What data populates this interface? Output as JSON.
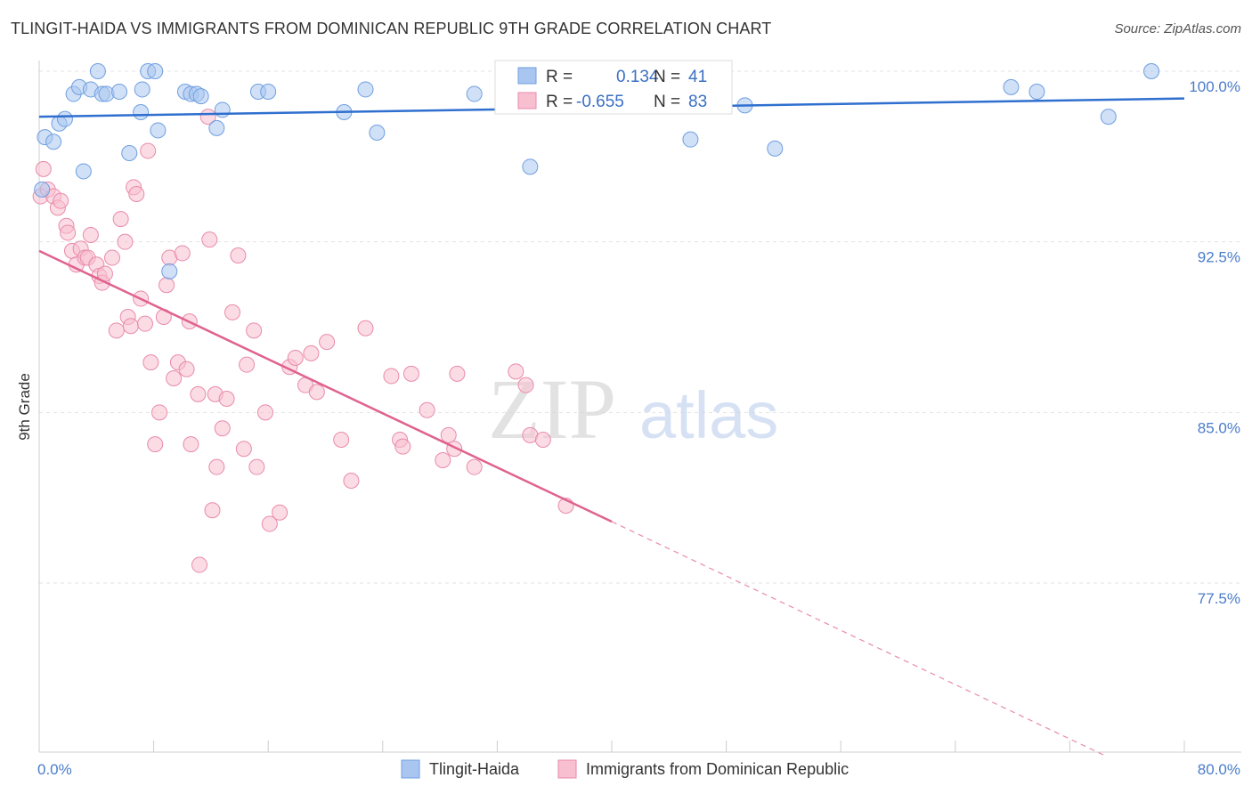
{
  "title": "TLINGIT-HAIDA VS IMMIGRANTS FROM DOMINICAN REPUBLIC 9TH GRADE CORRELATION CHART",
  "source": "Source: ZipAtlas.com",
  "watermark": {
    "zip": "ZIP",
    "atlas": "atlas"
  },
  "legend": {
    "rows": [
      {
        "r_label": "R =",
        "r_value": "0.134",
        "n_label": "N =",
        "n_value": "41",
        "color": "#a9c6f0",
        "stroke": "#6f9fe0"
      },
      {
        "r_label": "R =",
        "r_value": "-0.655",
        "n_label": "N =",
        "n_value": "83",
        "color": "#f7bfd0",
        "stroke": "#e98aab"
      }
    ]
  },
  "bottom_legend": [
    {
      "label": "Tlingit-Haida",
      "color": "#a9c6f0",
      "stroke": "#6f9fe0"
    },
    {
      "label": "Immigrants from Dominican Republic",
      "color": "#f7bfd0",
      "stroke": "#e98aab"
    }
  ],
  "chart_data": {
    "type": "scatter",
    "title": "TLINGIT-HAIDA VS IMMIGRANTS FROM DOMINICAN REPUBLIC 9TH GRADE CORRELATION CHART",
    "xlabel": "",
    "ylabel": "9th Grade",
    "xlim": [
      0,
      80
    ],
    "ylim": [
      70.0,
      101.5
    ],
    "x_tick_labels": [
      "0.0%",
      "80.0%"
    ],
    "y_ticks": [
      77.5,
      85.0,
      92.5,
      100.0
    ],
    "y_tick_labels": [
      "77.5%",
      "85.0%",
      "92.5%",
      "100.0%"
    ],
    "grid": true,
    "series": [
      {
        "name": "Tlingit-Haida",
        "color": "#6f9fe0",
        "fill": "#a9c6f0",
        "trend": {
          "x": [
            0,
            80
          ],
          "y": [
            98.0,
            98.8
          ]
        },
        "points": [
          [
            0.4,
            97.1
          ],
          [
            1.0,
            96.9
          ],
          [
            1.4,
            97.7
          ],
          [
            1.8,
            97.9
          ],
          [
            2.4,
            99.0
          ],
          [
            2.8,
            99.3
          ],
          [
            3.1,
            95.6
          ],
          [
            3.6,
            99.2
          ],
          [
            4.1,
            100.0
          ],
          [
            4.4,
            99.0
          ],
          [
            4.7,
            99.0
          ],
          [
            5.6,
            99.1
          ],
          [
            6.3,
            96.4
          ],
          [
            7.1,
            98.2
          ],
          [
            7.2,
            99.2
          ],
          [
            7.6,
            100.0
          ],
          [
            8.1,
            100.0
          ],
          [
            8.3,
            97.4
          ],
          [
            9.1,
            91.2
          ],
          [
            10.2,
            99.1
          ],
          [
            10.6,
            99.0
          ],
          [
            11.0,
            99.0
          ],
          [
            11.3,
            98.9
          ],
          [
            12.4,
            97.5
          ],
          [
            12.8,
            98.3
          ],
          [
            15.3,
            99.1
          ],
          [
            16.0,
            99.1
          ],
          [
            21.3,
            98.2
          ],
          [
            22.8,
            99.2
          ],
          [
            23.6,
            97.3
          ],
          [
            30.4,
            99.0
          ],
          [
            34.3,
            95.8
          ],
          [
            36.2,
            100.0
          ],
          [
            45.5,
            97.0
          ],
          [
            49.3,
            98.5
          ],
          [
            51.4,
            96.6
          ],
          [
            67.9,
            99.3
          ],
          [
            69.7,
            99.1
          ],
          [
            74.7,
            98.0
          ],
          [
            77.7,
            100.0
          ],
          [
            0.2,
            94.8
          ]
        ]
      },
      {
        "name": "Immigrants from Dominican Republic",
        "color": "#e98aab",
        "fill": "#f7bfd0",
        "trend": {
          "x": [
            0,
            40
          ],
          "y": [
            92.1,
            80.2
          ]
        },
        "trend_extension": {
          "x": [
            40,
            74.5
          ],
          "y": [
            80.2,
            69.9
          ]
        },
        "points": [
          [
            0.1,
            94.5
          ],
          [
            0.3,
            95.7
          ],
          [
            0.6,
            94.8
          ],
          [
            1.0,
            94.5
          ],
          [
            1.3,
            94.0
          ],
          [
            1.5,
            94.3
          ],
          [
            1.9,
            93.2
          ],
          [
            2.0,
            92.9
          ],
          [
            2.3,
            92.1
          ],
          [
            2.6,
            91.5
          ],
          [
            2.9,
            92.2
          ],
          [
            3.2,
            91.8
          ],
          [
            3.4,
            91.8
          ],
          [
            3.6,
            92.8
          ],
          [
            4.0,
            91.5
          ],
          [
            4.2,
            91.0
          ],
          [
            4.4,
            90.7
          ],
          [
            4.6,
            91.1
          ],
          [
            5.1,
            91.8
          ],
          [
            5.4,
            88.6
          ],
          [
            5.7,
            93.5
          ],
          [
            6.0,
            92.5
          ],
          [
            6.2,
            89.2
          ],
          [
            6.4,
            88.8
          ],
          [
            6.6,
            94.9
          ],
          [
            6.8,
            94.6
          ],
          [
            7.1,
            90.0
          ],
          [
            7.4,
            88.9
          ],
          [
            7.6,
            96.5
          ],
          [
            7.8,
            87.2
          ],
          [
            8.1,
            83.6
          ],
          [
            8.4,
            85.0
          ],
          [
            8.7,
            89.2
          ],
          [
            8.9,
            90.6
          ],
          [
            9.1,
            91.8
          ],
          [
            9.4,
            86.5
          ],
          [
            9.7,
            87.2
          ],
          [
            10.0,
            92.0
          ],
          [
            10.3,
            86.9
          ],
          [
            10.5,
            89.0
          ],
          [
            10.6,
            83.6
          ],
          [
            11.1,
            85.8
          ],
          [
            11.2,
            78.3
          ],
          [
            11.8,
            98.0
          ],
          [
            11.9,
            92.6
          ],
          [
            12.1,
            80.7
          ],
          [
            12.3,
            85.8
          ],
          [
            12.4,
            82.6
          ],
          [
            12.8,
            84.3
          ],
          [
            13.1,
            85.6
          ],
          [
            13.5,
            89.4
          ],
          [
            13.9,
            91.9
          ],
          [
            14.3,
            83.4
          ],
          [
            14.5,
            87.1
          ],
          [
            15.0,
            88.6
          ],
          [
            15.2,
            82.6
          ],
          [
            15.8,
            85.0
          ],
          [
            16.1,
            80.1
          ],
          [
            16.8,
            80.6
          ],
          [
            17.5,
            87.0
          ],
          [
            17.9,
            87.4
          ],
          [
            18.6,
            86.2
          ],
          [
            19.0,
            87.6
          ],
          [
            19.4,
            85.9
          ],
          [
            20.1,
            88.1
          ],
          [
            21.1,
            83.8
          ],
          [
            21.8,
            82.0
          ],
          [
            22.8,
            88.7
          ],
          [
            24.6,
            86.6
          ],
          [
            25.2,
            83.8
          ],
          [
            25.4,
            83.5
          ],
          [
            26.0,
            86.7
          ],
          [
            27.1,
            85.1
          ],
          [
            28.2,
            82.9
          ],
          [
            28.6,
            84.0
          ],
          [
            29.0,
            83.4
          ],
          [
            29.2,
            86.7
          ],
          [
            30.4,
            82.6
          ],
          [
            33.3,
            86.8
          ],
          [
            34.0,
            86.2
          ],
          [
            34.3,
            84.0
          ],
          [
            35.2,
            83.8
          ],
          [
            36.8,
            80.9
          ]
        ]
      }
    ]
  }
}
